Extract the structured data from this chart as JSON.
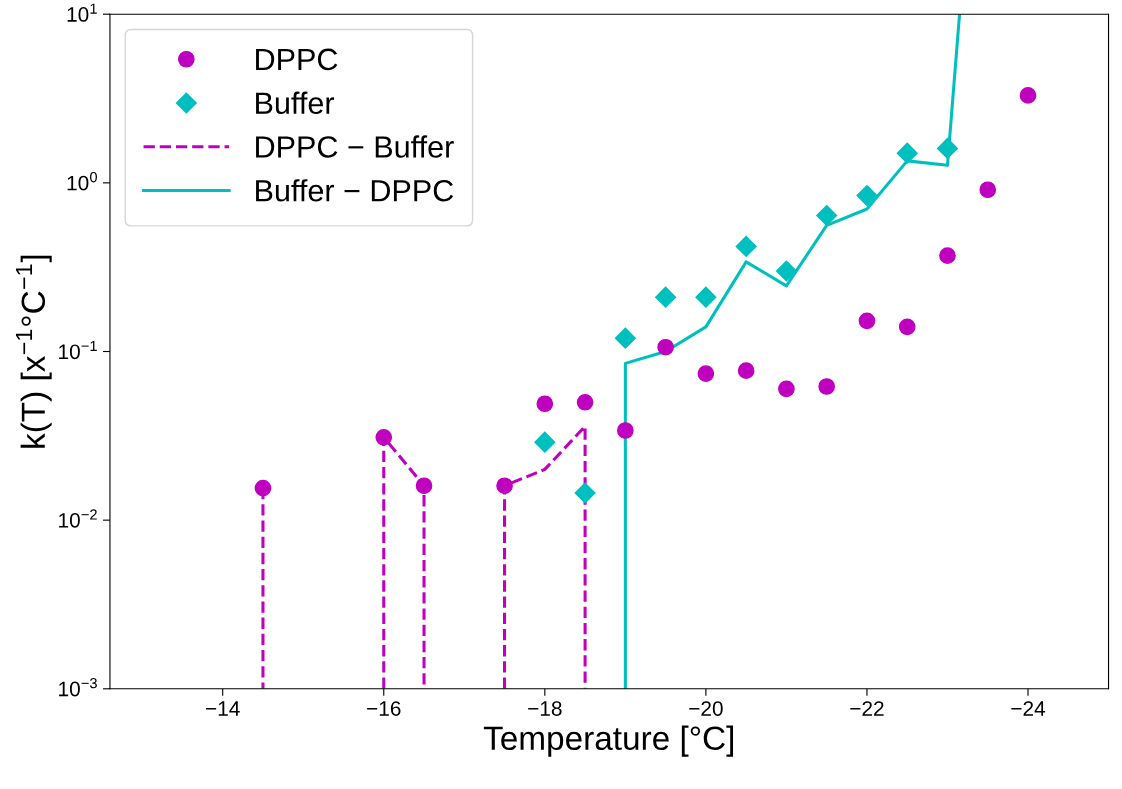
{
  "chart_data": {
    "type": "scatter",
    "xlabel": "Temperature [°C]",
    "ylabel": "k(T) [x$^{−1}$°C$^{−1}$]",
    "log": "y",
    "grid": false,
    "legend": "top left",
    "xlim": [
      -12.6,
      -25
    ],
    "xticks": [
      -14,
      -16,
      -18,
      -20,
      -22,
      -24
    ],
    "ylim": [
      0.001,
      10
    ],
    "yticks": [
      {
        "value": 0.001,
        "label": "10$^{−3}$"
      },
      {
        "value": 0.01,
        "label": "10$^{−2}$"
      },
      {
        "value": 0.1,
        "label": "10$^{−1}$"
      },
      {
        "value": 1,
        "label": "10$^{0}$"
      },
      {
        "value": 10,
        "label": "10$^{1}$"
      }
    ],
    "series": [
      {
        "name": "DPPC",
        "marker": "circle",
        "color": "#bf00bf",
        "x": [
          -14.5,
          -16,
          -16.5,
          -17.5,
          -18,
          -18.5,
          -19,
          -19.5,
          -20,
          -20.5,
          -21,
          -21.5,
          -22,
          -22.5,
          -23,
          -23.5,
          -24
        ],
        "values": [
          0.0155,
          0.031,
          0.016,
          0.016,
          0.049,
          0.05,
          0.034,
          0.106,
          0.074,
          0.077,
          0.06,
          0.062,
          0.152,
          0.14,
          0.37,
          0.91,
          3.3
        ]
      },
      {
        "name": "Buffer",
        "marker": "diamond",
        "color": "#00bfbf",
        "x": [
          -18,
          -18.5,
          -19,
          -19.5,
          -20,
          -20.5,
          -21,
          -21.5,
          -22,
          -22.5,
          -23
        ],
        "values": [
          0.029,
          0.0145,
          0.12,
          0.21,
          0.21,
          0.42,
          0.3,
          0.64,
          0.84,
          1.5,
          1.6
        ]
      },
      {
        "name": "DPPC − Buffer",
        "type": "line",
        "line_style": "dashed",
        "color": "#bf00bf",
        "x": [
          -14.5,
          -14.5,
          -15,
          -16,
          -16,
          -16.5,
          -16.5,
          -17,
          -17.5,
          -17.5,
          -18,
          -18.5,
          -18.5
        ],
        "values": [
          0.0155,
          0.001,
          null,
          0.001,
          0.031,
          0.016,
          0.001,
          null,
          0.001,
          0.016,
          0.02,
          0.036,
          0.001
        ]
      },
      {
        "name": "Buffer − DPPC",
        "type": "line",
        "line_style": "solid",
        "color": "#00bfbf",
        "x": [
          -19,
          -19,
          -19.5,
          -20,
          -20.5,
          -21,
          -21.5,
          -22,
          -22.5,
          -23,
          -23.15
        ],
        "values": [
          0.001,
          0.085,
          0.1,
          0.14,
          0.34,
          0.245,
          0.56,
          0.7,
          1.35,
          1.27,
          10
        ]
      }
    ]
  }
}
